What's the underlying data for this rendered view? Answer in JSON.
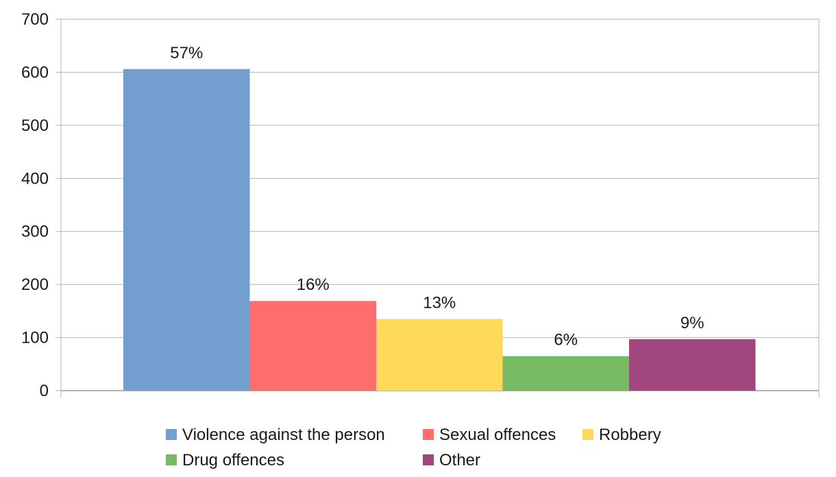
{
  "chart_data": {
    "type": "bar",
    "title": "",
    "xlabel": "",
    "ylabel": "",
    "ylim": [
      0,
      700
    ],
    "yticks": [
      0,
      100,
      200,
      300,
      400,
      500,
      600,
      700
    ],
    "grid": true,
    "legend_position": "bottom",
    "series": [
      {
        "name": "Violence against the person",
        "value": 606,
        "label": "57%",
        "color": "#729fcf"
      },
      {
        "name": "Sexual offences",
        "value": 169,
        "label": "16%",
        "color": "#ff6d6d"
      },
      {
        "name": "Robbery",
        "value": 135,
        "label": "13%",
        "color": "#ffd95a"
      },
      {
        "name": "Drug offences",
        "value": 65,
        "label": "6%",
        "color": "#77bc65"
      },
      {
        "name": "Other",
        "value": 97,
        "label": "9%",
        "color": "#a1467e"
      }
    ]
  }
}
